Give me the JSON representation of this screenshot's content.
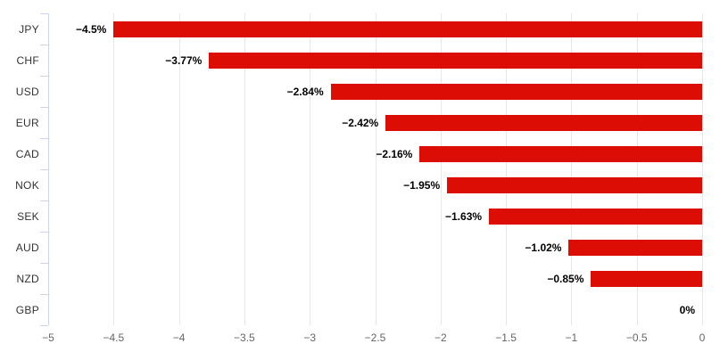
{
  "chart_data": {
    "type": "bar",
    "orientation": "horizontal",
    "title": "",
    "xlabel": "",
    "ylabel": "",
    "xlim": [
      -5,
      0
    ],
    "grid": true,
    "legend": false,
    "categories": [
      "JPY",
      "CHF",
      "USD",
      "EUR",
      "CAD",
      "NOK",
      "SEK",
      "AUD",
      "NZD",
      "GBP"
    ],
    "values": [
      -4.5,
      -3.77,
      -2.84,
      -2.42,
      -2.16,
      -1.95,
      -1.63,
      -1.02,
      -0.85,
      0
    ],
    "data_labels": [
      "−4.5%",
      "−3.77%",
      "−2.84%",
      "−2.42%",
      "−2.16%",
      "−1.95%",
      "−1.63%",
      "−1.02%",
      "−0.85%",
      "0%"
    ],
    "x_ticks": [
      {
        "value": -5,
        "label": "−5"
      },
      {
        "value": -4.5,
        "label": "−4.5"
      },
      {
        "value": -4,
        "label": "−4"
      },
      {
        "value": -3.5,
        "label": "−3.5"
      },
      {
        "value": -3,
        "label": "−3"
      },
      {
        "value": -2.5,
        "label": "−2.5"
      },
      {
        "value": -2,
        "label": "−2"
      },
      {
        "value": -1.5,
        "label": "−1.5"
      },
      {
        "value": -1,
        "label": "−1"
      },
      {
        "value": -0.5,
        "label": "−0.5"
      },
      {
        "value": 0,
        "label": "0"
      }
    ]
  },
  "colors": {
    "bar": "#dc0d05",
    "grid": "#e6e6e6",
    "axis": "#ccd6eb",
    "category_label": "#333333",
    "x_tick_label": "#666666",
    "data_label": "#000000",
    "background": "#ffffff"
  }
}
